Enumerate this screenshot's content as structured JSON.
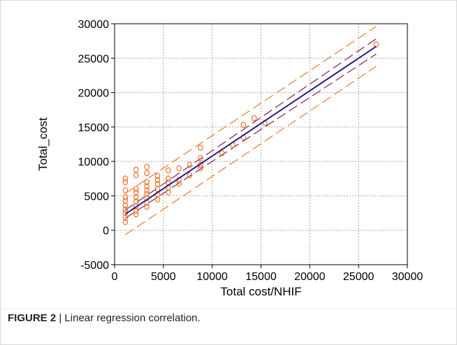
{
  "caption": {
    "label": "FIGURE 2",
    "separator": " | ",
    "text": "Linear regression correlation."
  },
  "colors": {
    "points": "#ee6a1e",
    "fit_line": "#1f1f8f",
    "confidence_band": "#8b2040",
    "prediction_band": "#f07a30",
    "grid": "#a8a8a8"
  },
  "chart_data": {
    "type": "scatter",
    "title": "",
    "xlabel": "Total cost/NHIF",
    "ylabel": "Total_cost",
    "xlim": [
      0,
      30000
    ],
    "ylim": [
      -5000,
      30000
    ],
    "xticks": [
      0,
      5000,
      10000,
      15000,
      20000,
      25000,
      30000
    ],
    "yticks": [
      -5000,
      0,
      5000,
      10000,
      15000,
      20000,
      25000,
      30000
    ],
    "grid": true,
    "series": [
      {
        "kind": "points",
        "marker": "circle",
        "points": [
          [
            1100,
            1200
          ],
          [
            1100,
            1800
          ],
          [
            1100,
            2500
          ],
          [
            1100,
            3000
          ],
          [
            1100,
            3600
          ],
          [
            1100,
            4300
          ],
          [
            1100,
            4800
          ],
          [
            1100,
            5800
          ],
          [
            1100,
            7000
          ],
          [
            1100,
            7500
          ],
          [
            2200,
            2300
          ],
          [
            2200,
            2800
          ],
          [
            2200,
            3500
          ],
          [
            2200,
            4200
          ],
          [
            2200,
            4800
          ],
          [
            2200,
            5500
          ],
          [
            2200,
            6000
          ],
          [
            2200,
            8000
          ],
          [
            2200,
            8800
          ],
          [
            3300,
            3400
          ],
          [
            3300,
            4000
          ],
          [
            3300,
            4700
          ],
          [
            3300,
            5300
          ],
          [
            3300,
            5800
          ],
          [
            3300,
            6400
          ],
          [
            3300,
            7000
          ],
          [
            3300,
            8300
          ],
          [
            3300,
            9200
          ],
          [
            4400,
            4500
          ],
          [
            4400,
            5200
          ],
          [
            4400,
            6000
          ],
          [
            4400,
            6700
          ],
          [
            4400,
            7300
          ],
          [
            4400,
            7900
          ],
          [
            5500,
            5500
          ],
          [
            5500,
            6200
          ],
          [
            5500,
            7000
          ],
          [
            5500,
            7500
          ],
          [
            5500,
            8700
          ],
          [
            6600,
            6800
          ],
          [
            6600,
            7300
          ],
          [
            6600,
            9000
          ],
          [
            7700,
            8000
          ],
          [
            7700,
            9500
          ],
          [
            8800,
            9000
          ],
          [
            8800,
            9500
          ],
          [
            8800,
            10500
          ],
          [
            8800,
            12000
          ],
          [
            11000,
            11200
          ],
          [
            12100,
            12400
          ],
          [
            13200,
            13500
          ],
          [
            13200,
            15300
          ],
          [
            14300,
            16300
          ],
          [
            15400,
            15600
          ],
          [
            26800,
            27000
          ]
        ]
      },
      {
        "kind": "fit",
        "x": [
          1100,
          26800
        ],
        "y": [
          2350,
          26700
        ]
      },
      {
        "kind": "confidence-band",
        "x": [
          1100,
          26800
        ],
        "upper": [
          2950,
          27800
        ],
        "lower": [
          1750,
          25600
        ]
      },
      {
        "kind": "prediction-band",
        "x": [
          1100,
          26800
        ],
        "upper": [
          5350,
          29600
        ],
        "lower": [
          -650,
          23800
        ]
      }
    ]
  }
}
